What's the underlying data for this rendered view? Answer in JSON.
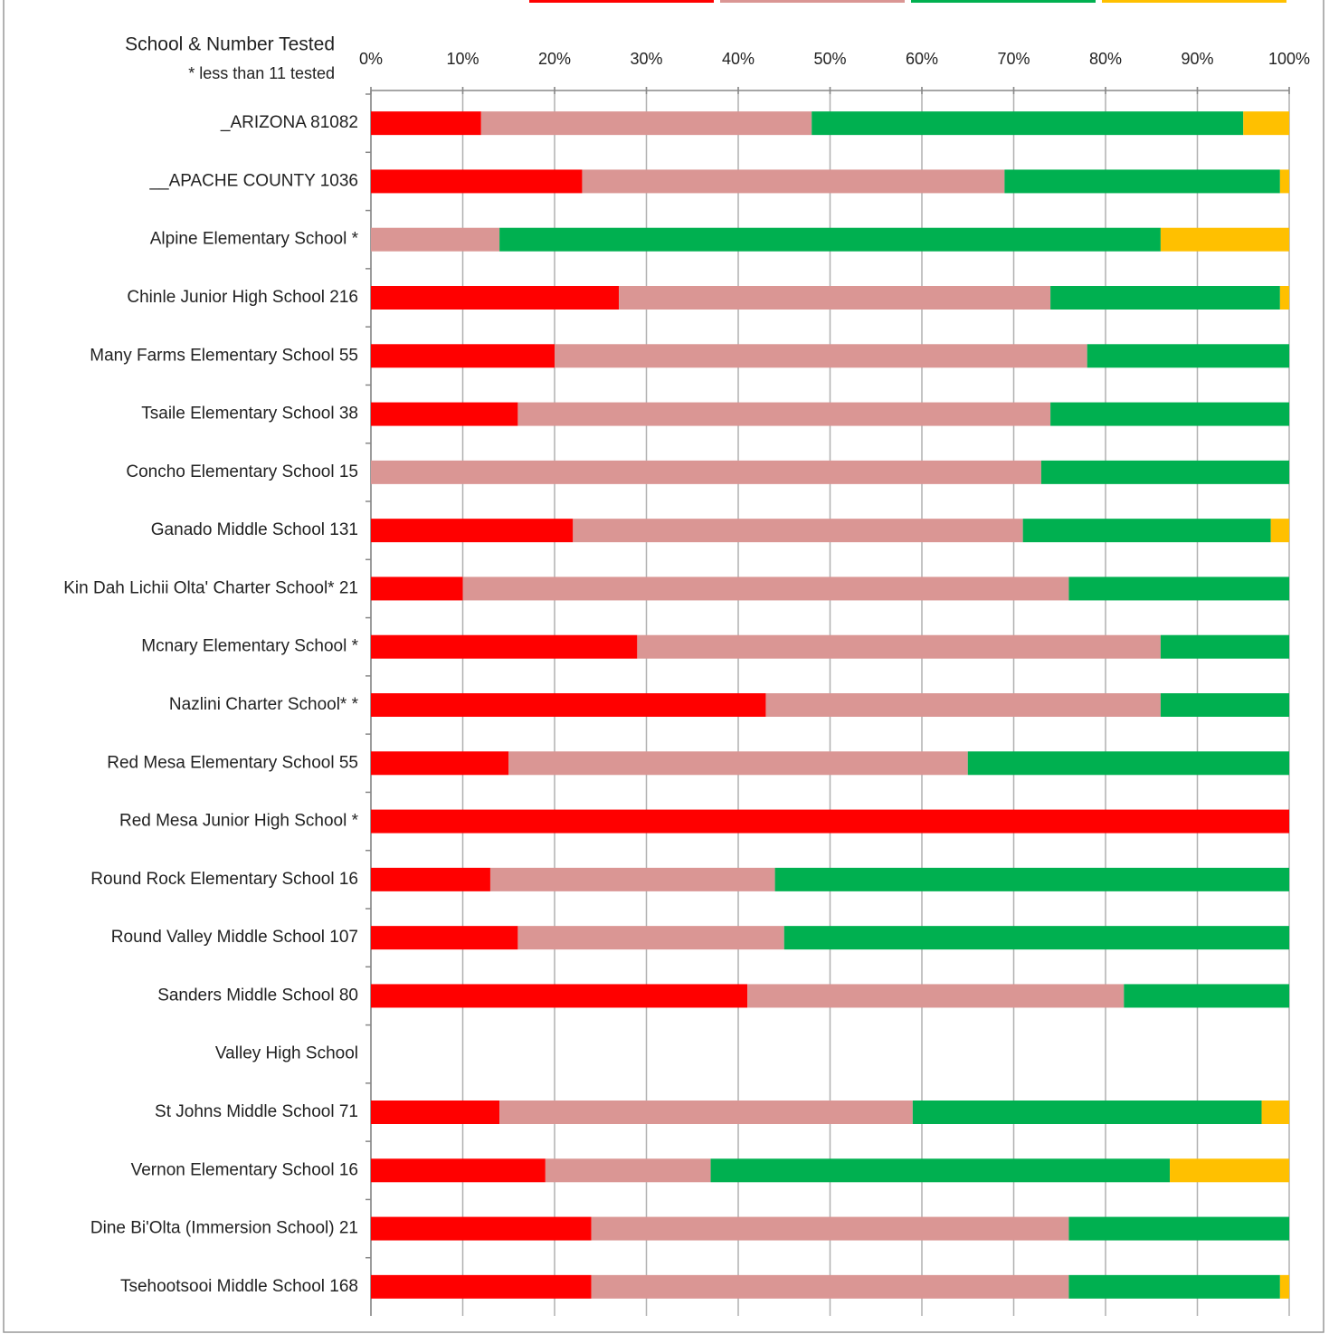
{
  "chart_data": {
    "type": "stacked-bar-horizontal",
    "title": "School & Number Tested",
    "subtitle": "* less than 11 tested",
    "categories": [
      "_ARIZONA 81082",
      "__APACHE COUNTY 1036",
      "Alpine Elementary School *",
      "Chinle Junior High School 216",
      "Many Farms Elementary School 55",
      "Tsaile Elementary School 38",
      "Concho Elementary School 15",
      "Ganado Middle School 131",
      "Kin Dah Lichii Olta' Charter School* 21",
      "Mcnary Elementary School *",
      "Nazlini Charter School* *",
      "Red Mesa Elementary School 55",
      "Red Mesa Junior High School *",
      "Round Rock Elementary School 16",
      "Round Valley Middle School 107",
      "Sanders Middle School 80",
      "Valley High School",
      "St Johns Middle School 71",
      "Vernon Elementary School 16",
      "Dine Bi'Olta (Immersion School) 21",
      "Tsehootsooi Middle School 168"
    ],
    "series": [
      {
        "color": "#ff0000",
        "values": [
          12,
          23,
          0,
          27,
          20,
          16,
          0,
          22,
          10,
          29,
          43,
          15,
          100,
          13,
          16,
          41,
          null,
          14,
          19,
          24,
          24
        ]
      },
      {
        "color": "#da9694",
        "values": [
          36,
          46,
          14,
          47,
          58,
          58,
          73,
          49,
          66,
          57,
          43,
          50,
          0,
          31,
          29,
          41,
          null,
          45,
          18,
          52,
          52
        ]
      },
      {
        "color": "#00b050",
        "values": [
          47,
          30,
          72,
          25,
          22,
          26,
          27,
          27,
          24,
          14,
          14,
          35,
          0,
          56,
          55,
          18,
          null,
          38,
          50,
          24,
          23
        ]
      },
      {
        "color": "#ffc000",
        "values": [
          5,
          1,
          14,
          1,
          0,
          0,
          0,
          2,
          0,
          0,
          0,
          0,
          0,
          0,
          0,
          0,
          null,
          3,
          13,
          0,
          1
        ]
      }
    ],
    "xlim": [
      0,
      100
    ],
    "xticks": [
      {
        "value": 0,
        "label": "0%"
      },
      {
        "value": 10,
        "label": "10%"
      },
      {
        "value": 20,
        "label": "20%"
      },
      {
        "value": 30,
        "label": "30%"
      },
      {
        "value": 40,
        "label": "40%"
      },
      {
        "value": 50,
        "label": "50%"
      },
      {
        "value": 60,
        "label": "60%"
      },
      {
        "value": 70,
        "label": "70%"
      },
      {
        "value": 80,
        "label": "80%"
      },
      {
        "value": 90,
        "label": "90%"
      },
      {
        "value": 100,
        "label": "100%"
      }
    ],
    "grid": true
  }
}
